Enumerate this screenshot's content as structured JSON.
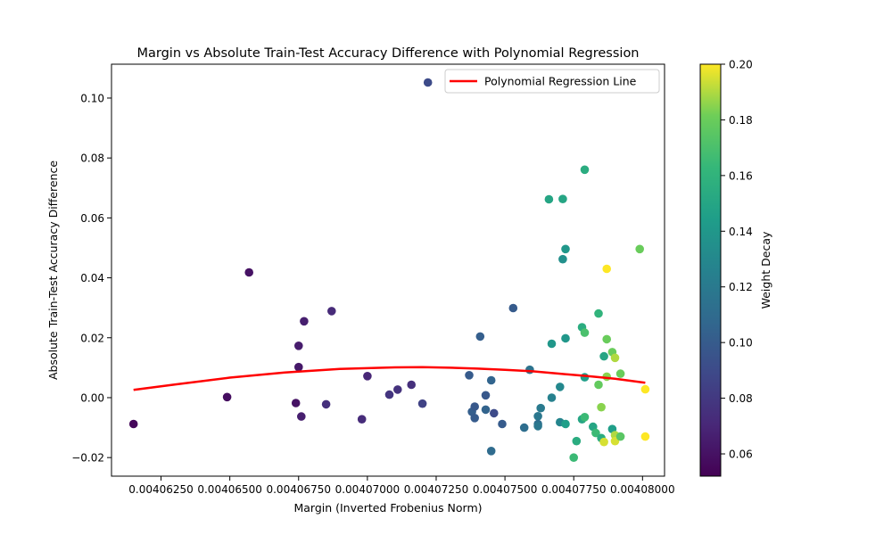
{
  "chart_data": {
    "type": "scatter",
    "title": "Margin vs Absolute Train-Test Accuracy Difference with Polynomial Regression",
    "xlabel": "Margin (Inverted Frobenius Norm)",
    "ylabel": "Absolute Train-Test Accuracy Difference",
    "xlim": [
      0.0040607,
      0.0040808
    ],
    "ylim": [
      -0.0262,
      0.1113
    ],
    "x_ticks": [
      0.0040625,
      0.004065,
      0.0040675,
      0.00407,
      0.0040725,
      0.004075,
      0.0040775,
      0.00408
    ],
    "x_tick_labels": [
      "0.00406250",
      "0.00406500",
      "0.00406750",
      "0.00407000",
      "0.00407250",
      "0.00407500",
      "0.00407750",
      "0.00408000"
    ],
    "y_ticks": [
      -0.02,
      0.0,
      0.02,
      0.04,
      0.06,
      0.08,
      0.1
    ],
    "y_tick_labels": [
      "−0.02",
      "0.00",
      "0.02",
      "0.04",
      "0.06",
      "0.08",
      "0.10"
    ],
    "legend": {
      "position": "top-right",
      "label": "Polynomial Regression Line",
      "color": "#ff0000"
    },
    "colorbar": {
      "label": "Weight Decay",
      "range": [
        0.052,
        0.2
      ],
      "ticks": [
        0.06,
        0.08,
        0.1,
        0.12,
        0.14,
        0.16,
        0.18,
        0.2
      ],
      "tick_labels": [
        "0.06",
        "0.08",
        "0.10",
        "0.12",
        "0.14",
        "0.16",
        "0.18",
        "0.20"
      ],
      "colormap": "viridis"
    },
    "points": [
      {
        "x": 0.0040615,
        "y": -0.0088,
        "c": 0.055
      },
      {
        "x": 0.0040649,
        "y": 0.0002,
        "c": 0.058
      },
      {
        "x": 0.0040657,
        "y": 0.0418,
        "c": 0.06
      },
      {
        "x": 0.0040674,
        "y": -0.0018,
        "c": 0.06
      },
      {
        "x": 0.0040675,
        "y": 0.0102,
        "c": 0.063
      },
      {
        "x": 0.0040675,
        "y": 0.0173,
        "c": 0.065
      },
      {
        "x": 0.0040676,
        "y": -0.0063,
        "c": 0.066
      },
      {
        "x": 0.0040677,
        "y": 0.0255,
        "c": 0.066
      },
      {
        "x": 0.0040685,
        "y": -0.0022,
        "c": 0.075
      },
      {
        "x": 0.0040687,
        "y": 0.0289,
        "c": 0.072
      },
      {
        "x": 0.0040698,
        "y": -0.0072,
        "c": 0.073
      },
      {
        "x": 0.00407,
        "y": 0.0072,
        "c": 0.07
      },
      {
        "x": 0.0040708,
        "y": 0.001,
        "c": 0.078
      },
      {
        "x": 0.0040711,
        "y": 0.0027,
        "c": 0.076
      },
      {
        "x": 0.0040716,
        "y": 0.0043,
        "c": 0.075
      },
      {
        "x": 0.004072,
        "y": -0.002,
        "c": 0.085
      },
      {
        "x": 0.0040722,
        "y": 0.1052,
        "c": 0.09
      },
      {
        "x": 0.0040737,
        "y": 0.0075,
        "c": 0.1
      },
      {
        "x": 0.0040738,
        "y": -0.0047,
        "c": 0.102
      },
      {
        "x": 0.0040739,
        "y": -0.003,
        "c": 0.098
      },
      {
        "x": 0.0040739,
        "y": -0.0068,
        "c": 0.1
      },
      {
        "x": 0.0040741,
        "y": 0.0204,
        "c": 0.102
      },
      {
        "x": 0.0040743,
        "y": -0.004,
        "c": 0.105
      },
      {
        "x": 0.0040743,
        "y": 0.0008,
        "c": 0.098
      },
      {
        "x": 0.0040745,
        "y": 0.0058,
        "c": 0.106
      },
      {
        "x": 0.0040746,
        "y": -0.0052,
        "c": 0.09
      },
      {
        "x": 0.0040745,
        "y": -0.0178,
        "c": 0.11
      },
      {
        "x": 0.0040749,
        "y": -0.0088,
        "c": 0.1
      },
      {
        "x": 0.0040753,
        "y": 0.0299,
        "c": 0.1
      },
      {
        "x": 0.0040757,
        "y": -0.01,
        "c": 0.112
      },
      {
        "x": 0.0040759,
        "y": 0.0093,
        "c": 0.115
      },
      {
        "x": 0.0040762,
        "y": -0.0062,
        "c": 0.118
      },
      {
        "x": 0.0040762,
        "y": -0.0088,
        "c": 0.112
      },
      {
        "x": 0.0040762,
        "y": -0.0095,
        "c": 0.118
      },
      {
        "x": 0.0040763,
        "y": -0.0035,
        "c": 0.12
      },
      {
        "x": 0.0040766,
        "y": 0.0662,
        "c": 0.15
      },
      {
        "x": 0.0040767,
        "y": 0.0,
        "c": 0.125
      },
      {
        "x": 0.0040767,
        "y": 0.018,
        "c": 0.14
      },
      {
        "x": 0.004077,
        "y": 0.0036,
        "c": 0.13
      },
      {
        "x": 0.004077,
        "y": -0.0082,
        "c": 0.128
      },
      {
        "x": 0.0040771,
        "y": 0.0663,
        "c": 0.15
      },
      {
        "x": 0.0040771,
        "y": 0.0462,
        "c": 0.135
      },
      {
        "x": 0.0040772,
        "y": 0.0198,
        "c": 0.14
      },
      {
        "x": 0.0040772,
        "y": 0.0496,
        "c": 0.14
      },
      {
        "x": 0.0040772,
        "y": -0.0088,
        "c": 0.145
      },
      {
        "x": 0.0040775,
        "y": -0.02,
        "c": 0.165
      },
      {
        "x": 0.0040776,
        "y": -0.0145,
        "c": 0.155
      },
      {
        "x": 0.0040778,
        "y": 0.0235,
        "c": 0.155
      },
      {
        "x": 0.0040778,
        "y": -0.0072,
        "c": 0.15
      },
      {
        "x": 0.0040779,
        "y": -0.0065,
        "c": 0.165
      },
      {
        "x": 0.0040779,
        "y": 0.0761,
        "c": 0.155
      },
      {
        "x": 0.0040779,
        "y": 0.0217,
        "c": 0.17
      },
      {
        "x": 0.0040779,
        "y": 0.0068,
        "c": 0.145
      },
      {
        "x": 0.0040782,
        "y": -0.0097,
        "c": 0.15
      },
      {
        "x": 0.0040783,
        "y": -0.0118,
        "c": 0.165
      },
      {
        "x": 0.0040784,
        "y": 0.0281,
        "c": 0.16
      },
      {
        "x": 0.0040784,
        "y": 0.0043,
        "c": 0.178
      },
      {
        "x": 0.0040785,
        "y": -0.0032,
        "c": 0.185
      },
      {
        "x": 0.0040785,
        "y": -0.0135,
        "c": 0.155
      },
      {
        "x": 0.0040786,
        "y": 0.0138,
        "c": 0.15
      },
      {
        "x": 0.0040786,
        "y": -0.0148,
        "c": 0.195
      },
      {
        "x": 0.0040787,
        "y": 0.043,
        "c": 0.2
      },
      {
        "x": 0.0040787,
        "y": 0.0195,
        "c": 0.18
      },
      {
        "x": 0.0040787,
        "y": 0.007,
        "c": 0.185
      },
      {
        "x": 0.0040789,
        "y": 0.0152,
        "c": 0.18
      },
      {
        "x": 0.0040789,
        "y": -0.0105,
        "c": 0.145
      },
      {
        "x": 0.004079,
        "y": 0.0133,
        "c": 0.19
      },
      {
        "x": 0.004079,
        "y": -0.0125,
        "c": 0.19
      },
      {
        "x": 0.004079,
        "y": -0.0145,
        "c": 0.195
      },
      {
        "x": 0.0040792,
        "y": 0.008,
        "c": 0.18
      },
      {
        "x": 0.0040792,
        "y": -0.013,
        "c": 0.175
      },
      {
        "x": 0.0040799,
        "y": 0.0496,
        "c": 0.18
      },
      {
        "x": 0.0040801,
        "y": 0.0028,
        "c": 0.2
      },
      {
        "x": 0.0040801,
        "y": -0.013,
        "c": 0.2
      }
    ],
    "regression_line": {
      "x": [
        0.0040615,
        0.004063,
        0.004065,
        0.004067,
        0.004069,
        0.004071,
        0.004072,
        0.004073,
        0.004074,
        0.004075,
        0.004076,
        0.004077,
        0.004078,
        0.004079,
        0.0040801
      ],
      "y": [
        0.0026,
        0.0044,
        0.0067,
        0.0084,
        0.0096,
        0.0101,
        0.0102,
        0.01,
        0.0097,
        0.0093,
        0.0088,
        0.008,
        0.0072,
        0.0063,
        0.005
      ]
    }
  }
}
